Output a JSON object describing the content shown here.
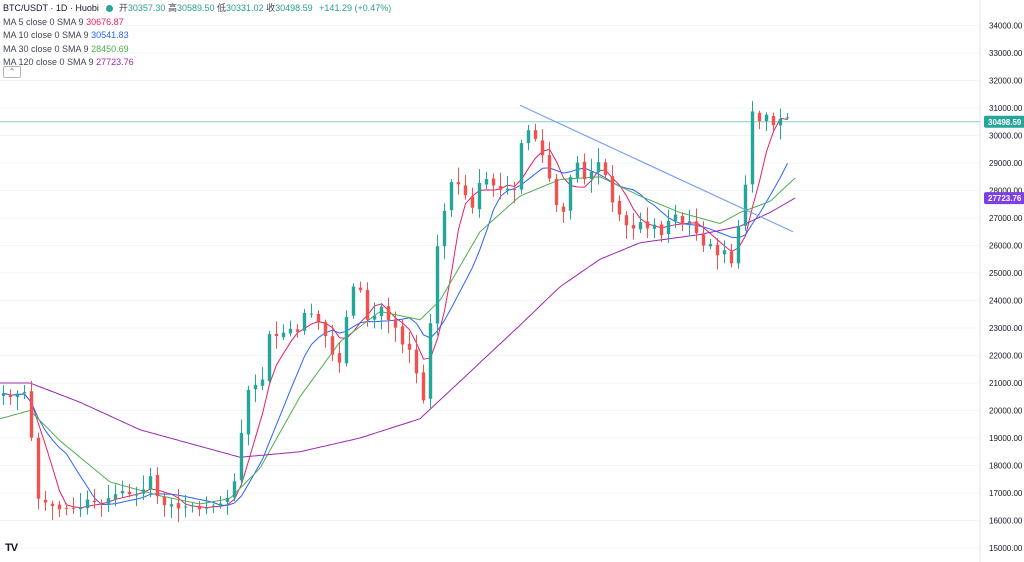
{
  "header": {
    "symbol": "BTC/USDT · 1D · Huobi",
    "open_label": "开",
    "open": "30357.30",
    "high_label": "高",
    "high": "30589.50",
    "low_label": "低",
    "low": "30331.02",
    "close_label": "收",
    "close": "30498.59",
    "change": "+141.29 (+0.47%)"
  },
  "legend": [
    {
      "label": "MA 5 close 0 SMA 9",
      "value": "30676.87",
      "color": "#e91e63"
    },
    {
      "label": "MA 10 close 0 SMA 9",
      "value": "30541.83",
      "color": "#2962ff"
    },
    {
      "label": "MA 30 close 0 SMA 9",
      "value": "28450.69",
      "color": "#4caf50"
    },
    {
      "label": "MA 120 close 0 SMA 9",
      "value": "27723.76",
      "color": "#9c27b0"
    }
  ],
  "collapse_icon": "chevron-up-icon",
  "logo": "TV",
  "colors": {
    "up": "#26a69a",
    "down": "#ef5350",
    "trendline": "#7b9ff5",
    "price_line": "#26a69a",
    "ma120_tag": "#7b3fe4"
  },
  "chart_data": {
    "type": "candlestick",
    "price_scale": "right",
    "ylim": [
      14800,
      35000
    ],
    "yticks": [
      "15000.00",
      "16000.00",
      "17000.00",
      "18000.00",
      "19000.00",
      "20000.00",
      "21000.00",
      "22000.00",
      "23000.00",
      "24000.00",
      "25000.00",
      "26000.00",
      "27000.00",
      "28000.00",
      "29000.00",
      "30000.00",
      "31000.00",
      "32000.00",
      "33000.00",
      "34000.00"
    ],
    "price_tags": [
      {
        "label": "30498.59",
        "value": 30498.59,
        "color": "#26a69a"
      },
      {
        "label": "27723.76",
        "value": 27723.76,
        "color": "#7b3fe4"
      }
    ],
    "close_anchors": [
      [
        0,
        20700
      ],
      [
        15,
        20400
      ],
      [
        22,
        21000
      ],
      [
        28,
        20200
      ],
      [
        33,
        18500
      ],
      [
        38,
        16800
      ],
      [
        48,
        16600
      ],
      [
        60,
        16400
      ],
      [
        72,
        16500
      ],
      [
        78,
        16300
      ],
      [
        85,
        16800
      ],
      [
        92,
        16700
      ],
      [
        100,
        16600
      ],
      [
        112,
        16900
      ],
      [
        124,
        17100
      ],
      [
        132,
        16900
      ],
      [
        140,
        17000
      ],
      [
        148,
        17300
      ],
      [
        152,
        17800
      ],
      [
        158,
        16800
      ],
      [
        166,
        16500
      ],
      [
        172,
        16600
      ],
      [
        180,
        16400
      ],
      [
        190,
        16600
      ],
      [
        200,
        16400
      ],
      [
        210,
        16500
      ],
      [
        220,
        16600
      ],
      [
        230,
        16900
      ],
      [
        236,
        17600
      ],
      [
        240,
        18700
      ],
      [
        244,
        20000
      ],
      [
        250,
        21000
      ],
      [
        258,
        20900
      ],
      [
        264,
        21200
      ],
      [
        268,
        22800
      ],
      [
        276,
        22700
      ],
      [
        282,
        22800
      ],
      [
        292,
        23000
      ],
      [
        300,
        22800
      ],
      [
        306,
        23800
      ],
      [
        314,
        23400
      ],
      [
        322,
        23100
      ],
      [
        330,
        22200
      ],
      [
        336,
        21800
      ],
      [
        342,
        21700
      ],
      [
        346,
        23200
      ],
      [
        350,
        24800
      ],
      [
        356,
        24300
      ],
      [
        362,
        24400
      ],
      [
        368,
        23200
      ],
      [
        376,
        23500
      ],
      [
        382,
        23800
      ],
      [
        388,
        23300
      ],
      [
        394,
        23200
      ],
      [
        398,
        22700
      ],
      [
        404,
        22300
      ],
      [
        410,
        22200
      ],
      [
        416,
        21600
      ],
      [
        419,
        20100
      ],
      [
        424,
        20400
      ],
      [
        428,
        21800
      ],
      [
        432,
        24000
      ],
      [
        436,
        25700
      ],
      [
        442,
        26800
      ],
      [
        448,
        27900
      ],
      [
        454,
        28600
      ],
      [
        460,
        28100
      ],
      [
        466,
        27800
      ],
      [
        472,
        27300
      ],
      [
        478,
        28200
      ],
      [
        484,
        28500
      ],
      [
        490,
        28300
      ],
      [
        496,
        28100
      ],
      [
        502,
        28000
      ],
      [
        510,
        28100
      ],
      [
        516,
        28000
      ],
      [
        520,
        29500
      ],
      [
        524,
        30100
      ],
      [
        528,
        30200
      ],
      [
        534,
        30100
      ],
      [
        540,
        29200
      ],
      [
        546,
        29400
      ],
      [
        550,
        28300
      ],
      [
        556,
        27500
      ],
      [
        562,
        27200
      ],
      [
        568,
        27300
      ],
      [
        572,
        29200
      ],
      [
        578,
        29000
      ],
      [
        584,
        28400
      ],
      [
        590,
        28500
      ],
      [
        596,
        29200
      ],
      [
        602,
        28800
      ],
      [
        608,
        28400
      ],
      [
        612,
        27600
      ],
      [
        618,
        27200
      ],
      [
        624,
        26900
      ],
      [
        630,
        26500
      ],
      [
        636,
        26700
      ],
      [
        642,
        26900
      ],
      [
        648,
        26600
      ],
      [
        654,
        26800
      ],
      [
        660,
        26300
      ],
      [
        666,
        26600
      ],
      [
        672,
        27300
      ],
      [
        678,
        27000
      ],
      [
        684,
        26700
      ],
      [
        690,
        26900
      ],
      [
        696,
        26500
      ],
      [
        702,
        25900
      ],
      [
        708,
        26300
      ],
      [
        714,
        25700
      ],
      [
        720,
        25600
      ],
      [
        726,
        25900
      ],
      [
        732,
        25300
      ],
      [
        736,
        26400
      ],
      [
        740,
        26900
      ],
      [
        744,
        27500
      ],
      [
        748,
        29400
      ],
      [
        752,
        30900
      ],
      [
        756,
        30700
      ],
      [
        760,
        30500
      ],
      [
        766,
        30800
      ],
      [
        772,
        30300
      ],
      [
        778,
        30600
      ],
      [
        784,
        30600
      ],
      [
        790,
        30700
      ],
      [
        794,
        30500
      ]
    ],
    "ma120_anchors": [
      [
        0,
        21000
      ],
      [
        30,
        21000
      ],
      [
        80,
        20300
      ],
      [
        140,
        19300
      ],
      [
        200,
        18700
      ],
      [
        240,
        18300
      ],
      [
        300,
        18500
      ],
      [
        360,
        19000
      ],
      [
        420,
        19700
      ],
      [
        470,
        21400
      ],
      [
        520,
        23100
      ],
      [
        560,
        24500
      ],
      [
        600,
        25500
      ],
      [
        640,
        26100
      ],
      [
        700,
        26400
      ],
      [
        740,
        26700
      ],
      [
        770,
        27200
      ],
      [
        795,
        27723.76
      ]
    ],
    "ma30_anchors": [
      [
        0,
        19700
      ],
      [
        30,
        20000
      ],
      [
        60,
        18900
      ],
      [
        110,
        17400
      ],
      [
        160,
        16900
      ],
      [
        200,
        16600
      ],
      [
        230,
        16800
      ],
      [
        260,
        17900
      ],
      [
        300,
        20500
      ],
      [
        340,
        22500
      ],
      [
        380,
        23600
      ],
      [
        420,
        23300
      ],
      [
        440,
        24000
      ],
      [
        480,
        26500
      ],
      [
        520,
        27800
      ],
      [
        560,
        28400
      ],
      [
        600,
        28500
      ],
      [
        640,
        27800
      ],
      [
        680,
        27200
      ],
      [
        720,
        26800
      ],
      [
        740,
        27200
      ],
      [
        770,
        27600
      ],
      [
        795,
        28450.69
      ]
    ],
    "trendline": {
      "from": [
        520,
        31100
      ],
      "to": [
        793,
        26500
      ]
    }
  }
}
